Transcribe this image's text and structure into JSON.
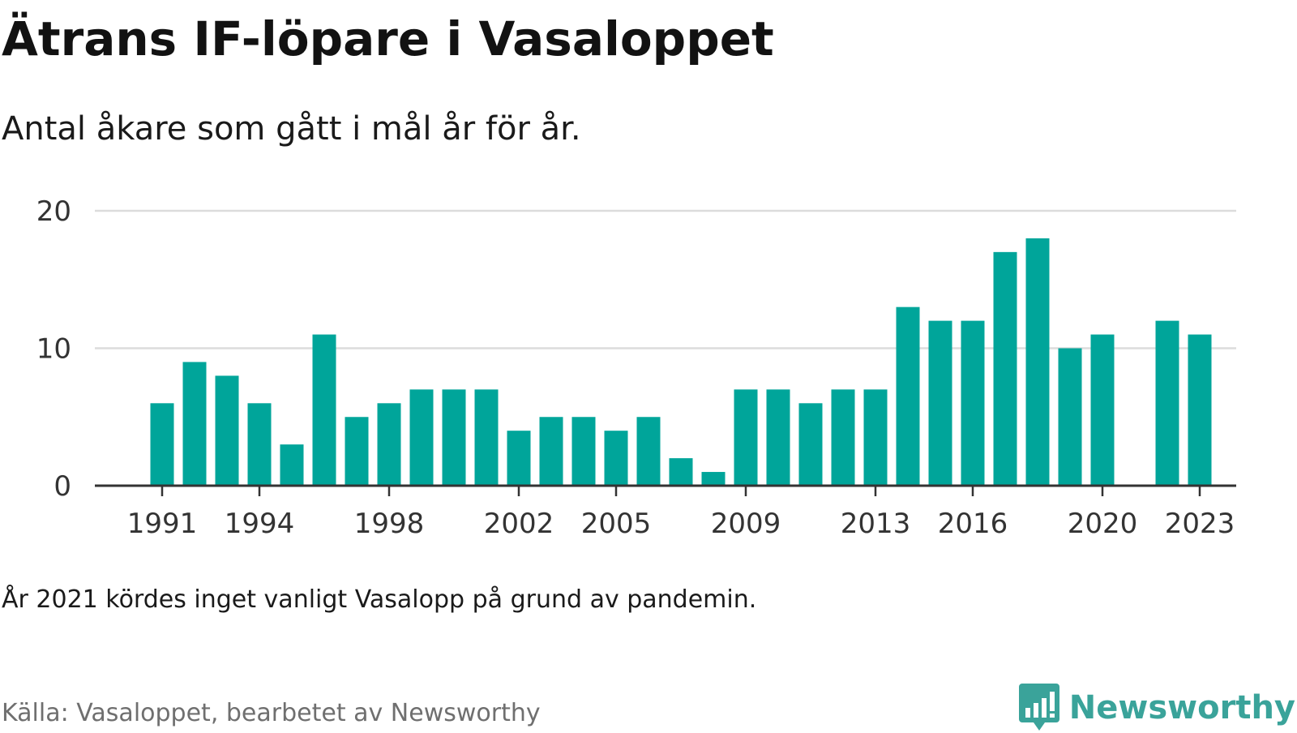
{
  "title": "Ätrans IF-löpare i Vasaloppet",
  "subtitle": "Antal åkare som gått i mål år för år.",
  "note": "År 2021 kördes inget vanligt Vasalopp på grund av pandemin.",
  "source": "Källa: Vasaloppet, bearbetet av Newsworthy",
  "brand": {
    "name": "Newsworthy",
    "icon": "newsworthy-logo-icon"
  },
  "colors": {
    "bar": "#00a59a",
    "grid": "#dcdcdc",
    "axis": "#333333",
    "tick_text": "#333333",
    "brand": "#3aa39a"
  },
  "chart_data": {
    "type": "bar",
    "title": "Ätrans IF-löpare i Vasaloppet",
    "subtitle": "Antal åkare som gått i mål år för år.",
    "xlabel": "",
    "ylabel": "",
    "x": [
      1991,
      1992,
      1993,
      1994,
      1995,
      1996,
      1997,
      1998,
      1999,
      2000,
      2001,
      2002,
      2003,
      2004,
      2005,
      2006,
      2007,
      2008,
      2009,
      2010,
      2011,
      2012,
      2013,
      2014,
      2015,
      2016,
      2017,
      2018,
      2019,
      2020,
      2021,
      2022,
      2023
    ],
    "values": [
      6,
      9,
      8,
      6,
      3,
      11,
      5,
      6,
      7,
      7,
      7,
      4,
      5,
      5,
      4,
      5,
      2,
      1,
      7,
      7,
      6,
      7,
      7,
      13,
      12,
      12,
      17,
      18,
      10,
      11,
      null,
      12,
      11
    ],
    "x_tick_labels": [
      "1991",
      "1994",
      "1998",
      "2002",
      "2005",
      "2009",
      "2013",
      "2016",
      "2020",
      "2023"
    ],
    "y_ticks": [
      0,
      10,
      20
    ],
    "ylim": [
      0,
      20
    ],
    "grid": true,
    "legend": "none"
  }
}
